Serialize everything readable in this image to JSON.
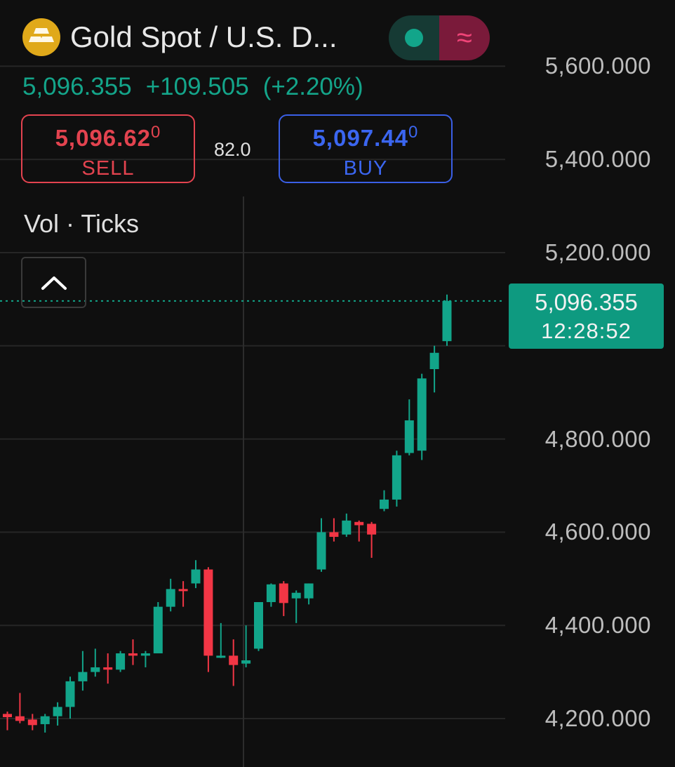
{
  "header": {
    "title": "Gold Spot / U.S. D...",
    "icon": "gold-bars-icon",
    "last_price": "5,096.355",
    "change": "+109.505",
    "change_pct": "(+2.20%)",
    "sell": {
      "price": "5,096.62",
      "price_sup": "0",
      "label": "SELL"
    },
    "buy": {
      "price": "5,097.44",
      "price_sup": "0",
      "label": "BUY"
    },
    "spread": "82.0"
  },
  "indicator": {
    "label": "Vol · Ticks"
  },
  "price_tag": {
    "price": "5,096.355",
    "time": "12:28:52"
  },
  "colors": {
    "up": "#12a58a",
    "down": "#f23645",
    "sell": "#e3434f",
    "buy": "#3b66f0",
    "background": "#0f0f0f",
    "grid": "#262626"
  },
  "chart_data": {
    "type": "candlestick",
    "y_axis": {
      "ticks": [
        "5,600.000",
        "5,400.000",
        "5,200.000",
        "4,800.000",
        "4,600.000",
        "4,400.000",
        "4,200.000"
      ],
      "tick_values": [
        5600,
        5400,
        5200,
        4800,
        4600,
        4400,
        4200
      ],
      "range": [
        4120,
        5700
      ]
    },
    "last_price": 5096.355,
    "candles": [
      {
        "o": 4210,
        "h": 4215,
        "l": 4175,
        "c": 4203
      },
      {
        "o": 4205,
        "h": 4255,
        "l": 4190,
        "c": 4195
      },
      {
        "o": 4198,
        "h": 4210,
        "l": 4175,
        "c": 4186
      },
      {
        "o": 4188,
        "h": 4210,
        "l": 4170,
        "c": 4205
      },
      {
        "o": 4205,
        "h": 4235,
        "l": 4185,
        "c": 4225
      },
      {
        "o": 4225,
        "h": 4290,
        "l": 4200,
        "c": 4280
      },
      {
        "o": 4280,
        "h": 4345,
        "l": 4260,
        "c": 4300
      },
      {
        "o": 4300,
        "h": 4350,
        "l": 4290,
        "c": 4310
      },
      {
        "o": 4310,
        "h": 4340,
        "l": 4275,
        "c": 4305
      },
      {
        "o": 4305,
        "h": 4345,
        "l": 4300,
        "c": 4340
      },
      {
        "o": 4340,
        "h": 4370,
        "l": 4315,
        "c": 4335
      },
      {
        "o": 4335,
        "h": 4345,
        "l": 4310,
        "c": 4340
      },
      {
        "o": 4340,
        "h": 4450,
        "l": 4340,
        "c": 4440
      },
      {
        "o": 4440,
        "h": 4500,
        "l": 4430,
        "c": 4478
      },
      {
        "o": 4478,
        "h": 4495,
        "l": 4440,
        "c": 4474
      },
      {
        "o": 4490,
        "h": 4540,
        "l": 4480,
        "c": 4520
      },
      {
        "o": 4520,
        "h": 4525,
        "l": 4300,
        "c": 4335
      },
      {
        "o": 4335,
        "h": 4405,
        "l": 4330,
        "c": 4335
      },
      {
        "o": 4335,
        "h": 4370,
        "l": 4270,
        "c": 4315
      },
      {
        "o": 4318,
        "h": 4400,
        "l": 4310,
        "c": 4325
      },
      {
        "o": 4350,
        "h": 4450,
        "l": 4345,
        "c": 4450
      },
      {
        "o": 4450,
        "h": 4490,
        "l": 4440,
        "c": 4488
      },
      {
        "o": 4490,
        "h": 4495,
        "l": 4420,
        "c": 4448
      },
      {
        "o": 4458,
        "h": 4475,
        "l": 4405,
        "c": 4470
      },
      {
        "o": 4458,
        "h": 4490,
        "l": 4445,
        "c": 4490
      },
      {
        "o": 4520,
        "h": 4630,
        "l": 4515,
        "c": 4600
      },
      {
        "o": 4600,
        "h": 4630,
        "l": 4580,
        "c": 4590
      },
      {
        "o": 4595,
        "h": 4640,
        "l": 4590,
        "c": 4625
      },
      {
        "o": 4622,
        "h": 4625,
        "l": 4580,
        "c": 4615
      },
      {
        "o": 4618,
        "h": 4622,
        "l": 4545,
        "c": 4595
      },
      {
        "o": 4650,
        "h": 4690,
        "l": 4645,
        "c": 4670
      },
      {
        "o": 4670,
        "h": 4775,
        "l": 4655,
        "c": 4765
      },
      {
        "o": 4770,
        "h": 4885,
        "l": 4765,
        "c": 4840
      },
      {
        "o": 4775,
        "h": 4940,
        "l": 4755,
        "c": 4930
      },
      {
        "o": 4950,
        "h": 5000,
        "l": 4900,
        "c": 4985
      },
      {
        "o": 5010,
        "h": 5110,
        "l": 5000,
        "c": 5096.355
      }
    ]
  }
}
